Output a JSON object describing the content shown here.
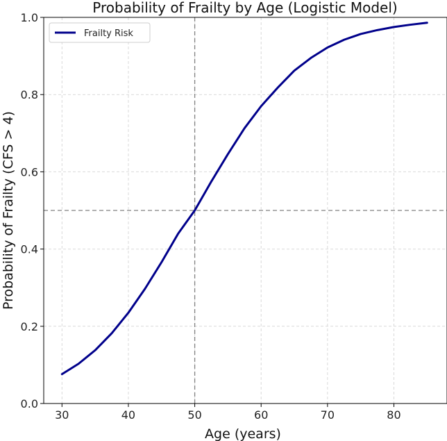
{
  "chart_data": {
    "type": "line",
    "title": "Probability of Frailty by Age (Logistic Model)",
    "xlabel": "Age (years)",
    "ylabel": "Probability of Frailty (CFS > 4)",
    "xlim": [
      27.25,
      88
    ],
    "ylim": [
      0.0,
      1.0
    ],
    "xticks": [
      30,
      40,
      50,
      60,
      70,
      80
    ],
    "yticks": [
      0.0,
      0.2,
      0.4,
      0.6,
      0.8,
      1.0
    ],
    "grid": true,
    "legend_position": "top-left",
    "series": [
      {
        "name": "Frailty Risk",
        "color": "#00008b",
        "x": [
          30,
          32.5,
          35,
          37.5,
          40,
          42.5,
          45,
          47.5,
          50,
          52.5,
          55,
          57.5,
          60,
          62.5,
          65,
          67.5,
          70,
          72.5,
          75,
          77.5,
          80,
          82.5,
          85
        ],
        "y": [
          0.076,
          0.103,
          0.138,
          0.182,
          0.235,
          0.297,
          0.366,
          0.44,
          0.5,
          0.575,
          0.646,
          0.713,
          0.77,
          0.818,
          0.862,
          0.895,
          0.922,
          0.942,
          0.957,
          0.967,
          0.975,
          0.981,
          0.986
        ]
      }
    ],
    "reference_lines": {
      "vertical_x": 50,
      "horizontal_y": 0.5,
      "color": "#808080",
      "style": "dashed"
    },
    "tick_labels_x": [
      "30",
      "40",
      "50",
      "60",
      "70",
      "80"
    ],
    "tick_labels_y": [
      "0.0",
      "0.2",
      "0.4",
      "0.6",
      "0.8",
      "1.0"
    ]
  }
}
